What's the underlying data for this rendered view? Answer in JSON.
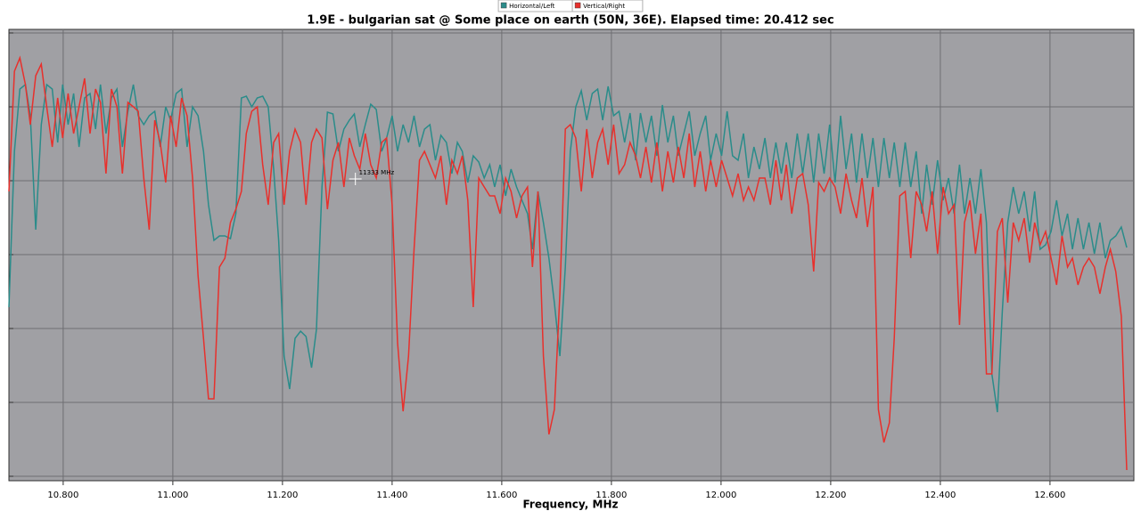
{
  "chart_data": {
    "type": "line",
    "title": "1.9E - bulgarian sat @ Some place on earth (50N, 36E). Elapsed time: 20.412 sec",
    "x_label": "Frequency, MHz",
    "annotation": {
      "text": "11333 MHz",
      "x": 11.333
    },
    "legend": "top",
    "grid": true,
    "xlim": [
      10.701,
      12.753
    ],
    "ylim": [
      0,
      507
    ],
    "xticks": [
      {
        "value": 10.8,
        "label": "10.800"
      },
      {
        "value": 11.0,
        "label": "11.000"
      },
      {
        "value": 11.2,
        "label": "11.200"
      },
      {
        "value": 11.4,
        "label": "11.400"
      },
      {
        "value": 11.6,
        "label": "11.600"
      },
      {
        "value": 11.8,
        "label": "11.800"
      },
      {
        "value": 12.0,
        "label": "12.000"
      },
      {
        "value": 12.2,
        "label": "12.200"
      },
      {
        "value": 12.4,
        "label": "12.400"
      },
      {
        "value": 12.6,
        "label": "12.600"
      }
    ],
    "yticks": [
      5,
      88,
      171,
      254,
      337,
      420,
      503
    ],
    "x": [
      10.701,
      10.711,
      10.721,
      10.731,
      10.74,
      10.75,
      10.76,
      10.77,
      10.78,
      10.79,
      10.799,
      10.809,
      10.819,
      10.829,
      10.839,
      10.849,
      10.859,
      10.868,
      10.878,
      10.888,
      10.898,
      10.908,
      10.918,
      10.928,
      10.937,
      10.947,
      10.957,
      10.967,
      10.977,
      10.987,
      10.996,
      11.006,
      11.016,
      11.026,
      11.036,
      11.046,
      11.056,
      11.065,
      11.075,
      11.085,
      11.095,
      11.105,
      11.115,
      11.125,
      11.134,
      11.144,
      11.154,
      11.164,
      11.174,
      11.184,
      11.193,
      11.203,
      11.213,
      11.223,
      11.233,
      11.243,
      11.253,
      11.262,
      11.272,
      11.282,
      11.292,
      11.302,
      11.312,
      11.322,
      11.331,
      11.341,
      11.351,
      11.361,
      11.371,
      11.381,
      11.39,
      11.4,
      11.41,
      11.42,
      11.43,
      11.44,
      11.45,
      11.459,
      11.469,
      11.479,
      11.489,
      11.499,
      11.509,
      11.519,
      11.528,
      11.538,
      11.548,
      11.558,
      11.568,
      11.578,
      11.587,
      11.597,
      11.607,
      11.617,
      11.627,
      11.637,
      11.647,
      11.656,
      11.666,
      11.676,
      11.686,
      11.696,
      11.706,
      11.716,
      11.725,
      11.735,
      11.745,
      11.755,
      11.765,
      11.775,
      11.784,
      11.794,
      11.804,
      11.814,
      11.824,
      11.834,
      11.844,
      11.853,
      11.863,
      11.873,
      11.883,
      11.893,
      11.903,
      11.913,
      11.922,
      11.932,
      11.942,
      11.952,
      11.962,
      11.972,
      11.981,
      11.991,
      12.001,
      12.011,
      12.021,
      12.031,
      12.041,
      12.05,
      12.06,
      12.07,
      12.08,
      12.09,
      12.1,
      12.11,
      12.119,
      12.129,
      12.139,
      12.149,
      12.159,
      12.169,
      12.178,
      12.188,
      12.198,
      12.208,
      12.218,
      12.228,
      12.238,
      12.247,
      12.257,
      12.267,
      12.277,
      12.287,
      12.297,
      12.307,
      12.316,
      12.326,
      12.336,
      12.346,
      12.356,
      12.366,
      12.375,
      12.385,
      12.395,
      12.405,
      12.415,
      12.425,
      12.435,
      12.444,
      12.454,
      12.464,
      12.474,
      12.484,
      12.494,
      12.504,
      12.513,
      12.523,
      12.533,
      12.543,
      12.553,
      12.563,
      12.572,
      12.582,
      12.592,
      12.602,
      12.612,
      12.622,
      12.632,
      12.641,
      12.651,
      12.661,
      12.671,
      12.681,
      12.691,
      12.701,
      12.71,
      12.72,
      12.73,
      12.74
    ],
    "series": [
      {
        "name": "Horizontal/Left",
        "color": "#2a8c8a",
        "values": [
          195,
          370,
          440,
          445,
          410,
          282,
          400,
          445,
          440,
          380,
          445,
          400,
          435,
          375,
          430,
          435,
          395,
          445,
          390,
          430,
          440,
          375,
          415,
          445,
          410,
          400,
          410,
          415,
          375,
          420,
          405,
          435,
          440,
          375,
          420,
          410,
          370,
          310,
          270,
          275,
          275,
          272,
          300,
          430,
          432,
          420,
          430,
          432,
          420,
          350,
          270,
          140,
          103,
          160,
          168,
          162,
          127,
          170,
          330,
          414,
          412,
          370,
          395,
          405,
          412,
          375,
          400,
          423,
          417,
          370,
          385,
          410,
          370,
          400,
          380,
          410,
          375,
          395,
          400,
          360,
          388,
          380,
          345,
          380,
          370,
          335,
          365,
          358,
          340,
          355,
          330,
          355,
          320,
          350,
          330,
          315,
          300,
          260,
          325,
          290,
          250,
          200,
          140,
          240,
          370,
          420,
          438,
          405,
          435,
          440,
          405,
          443,
          410,
          415,
          380,
          413,
          360,
          413,
          380,
          410,
          365,
          422,
          380,
          410,
          365,
          390,
          415,
          365,
          390,
          410,
          360,
          390,
          365,
          415,
          365,
          360,
          390,
          340,
          375,
          350,
          385,
          340,
          380,
          345,
          380,
          340,
          390,
          345,
          390,
          335,
          390,
          345,
          400,
          335,
          410,
          350,
          390,
          335,
          390,
          340,
          385,
          330,
          385,
          340,
          380,
          330,
          380,
          330,
          370,
          300,
          355,
          310,
          360,
          315,
          340,
          300,
          355,
          300,
          340,
          300,
          350,
          290,
          120,
          77,
          190,
          290,
          330,
          300,
          325,
          280,
          325,
          260,
          265,
          280,
          315,
          275,
          300,
          260,
          295,
          260,
          290,
          255,
          290,
          250,
          270,
          275,
          285,
          262
        ]
      },
      {
        "name": "Vertical/Right",
        "color": "#e8302c",
        "values": [
          325,
          460,
          475,
          445,
          400,
          455,
          468,
          420,
          375,
          430,
          385,
          435,
          390,
          420,
          452,
          390,
          440,
          425,
          345,
          440,
          420,
          345,
          425,
          420,
          415,
          340,
          282,
          405,
          380,
          335,
          410,
          375,
          430,
          410,
          340,
          230,
          160,
          92,
          92,
          240,
          250,
          290,
          305,
          325,
          390,
          415,
          420,
          355,
          310,
          380,
          390,
          310,
          370,
          395,
          380,
          310,
          380,
          395,
          385,
          305,
          360,
          380,
          330,
          385,
          365,
          350,
          390,
          355,
          340,
          380,
          385,
          310,
          155,
          78,
          140,
          260,
          360,
          370,
          355,
          340,
          365,
          310,
          360,
          345,
          365,
          315,
          195,
          340,
          330,
          320,
          320,
          300,
          340,
          325,
          295,
          320,
          330,
          240,
          325,
          140,
          52,
          80,
          210,
          395,
          400,
          385,
          325,
          395,
          340,
          380,
          395,
          355,
          400,
          345,
          355,
          380,
          365,
          340,
          375,
          335,
          380,
          325,
          370,
          335,
          375,
          340,
          390,
          330,
          370,
          325,
          360,
          330,
          360,
          340,
          320,
          345,
          315,
          330,
          315,
          340,
          340,
          310,
          360,
          315,
          355,
          300,
          340,
          345,
          310,
          235,
          335,
          325,
          340,
          330,
          300,
          345,
          315,
          295,
          340,
          285,
          330,
          80,
          43,
          65,
          160,
          320,
          325,
          250,
          325,
          310,
          280,
          325,
          255,
          330,
          300,
          310,
          175,
          290,
          315,
          255,
          300,
          120,
          120,
          280,
          295,
          200,
          290,
          270,
          295,
          245,
          290,
          265,
          280,
          250,
          220,
          275,
          240,
          250,
          220,
          240,
          250,
          240,
          210,
          240,
          260,
          235,
          185,
          12
        ]
      }
    ]
  }
}
